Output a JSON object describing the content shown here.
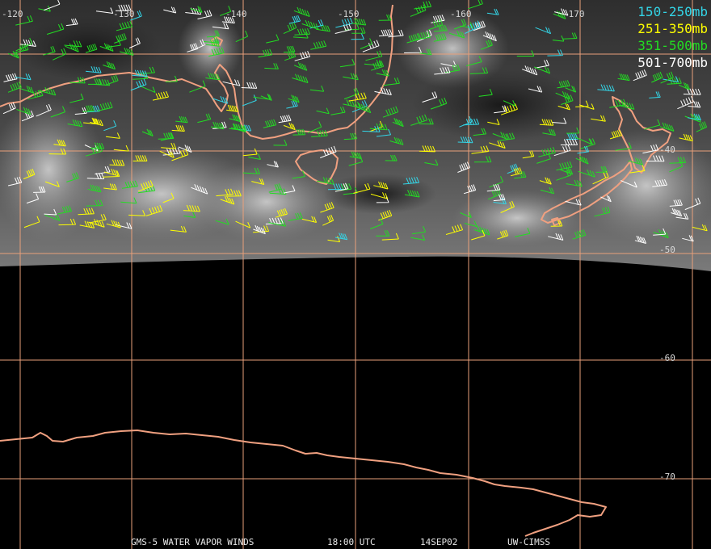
{
  "footer": {
    "product": "GMS-5 WATER VAPOR WINDS",
    "time": "18:00 UTC",
    "date": "14SEP02",
    "credit": "UW-CIMSS"
  },
  "legend": [
    {
      "label": "150-250mb",
      "color": "#33d6e8"
    },
    {
      "label": "251-350mb",
      "color": "#ffff00"
    },
    {
      "label": "351-500mb",
      "color": "#22dd22"
    },
    {
      "label": "501-700mb",
      "color": "#ffffff"
    }
  ],
  "longitude_labels": [
    "-120",
    "-130",
    "-140",
    "-150",
    "-160",
    "-170"
  ],
  "latitude_labels": [
    "-40",
    "-50",
    "-60",
    "-70"
  ],
  "colors": {
    "coastline": "#f0a080",
    "graticule": "#e9a07a",
    "background": "#000000"
  },
  "imagery": "GMS-5 water vapor channel (grayscale) over southern Australia, Tasmania, New Zealand and Southern Ocean; no data south of ~-50"
}
